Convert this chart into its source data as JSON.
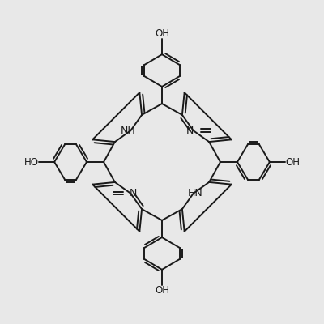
{
  "background_color": "#e8e8e8",
  "line_color": "#1a1a1a",
  "line_width": 1.4,
  "figsize": [
    4.0,
    4.0
  ],
  "dpi": 100,
  "xlim": [
    -3.6,
    3.6
  ],
  "ylim": [
    -3.6,
    3.6
  ],
  "label_NH_NW": "NH",
  "label_N_NE": "N",
  "label_N_SW": "N",
  "label_HN_SE": "HN",
  "label_OH_top": "OH",
  "label_OH_bottom": "OH",
  "label_OH_left": "HO",
  "label_OH_right": "OH",
  "fontsize_N": 9,
  "fontsize_OH": 8.5
}
